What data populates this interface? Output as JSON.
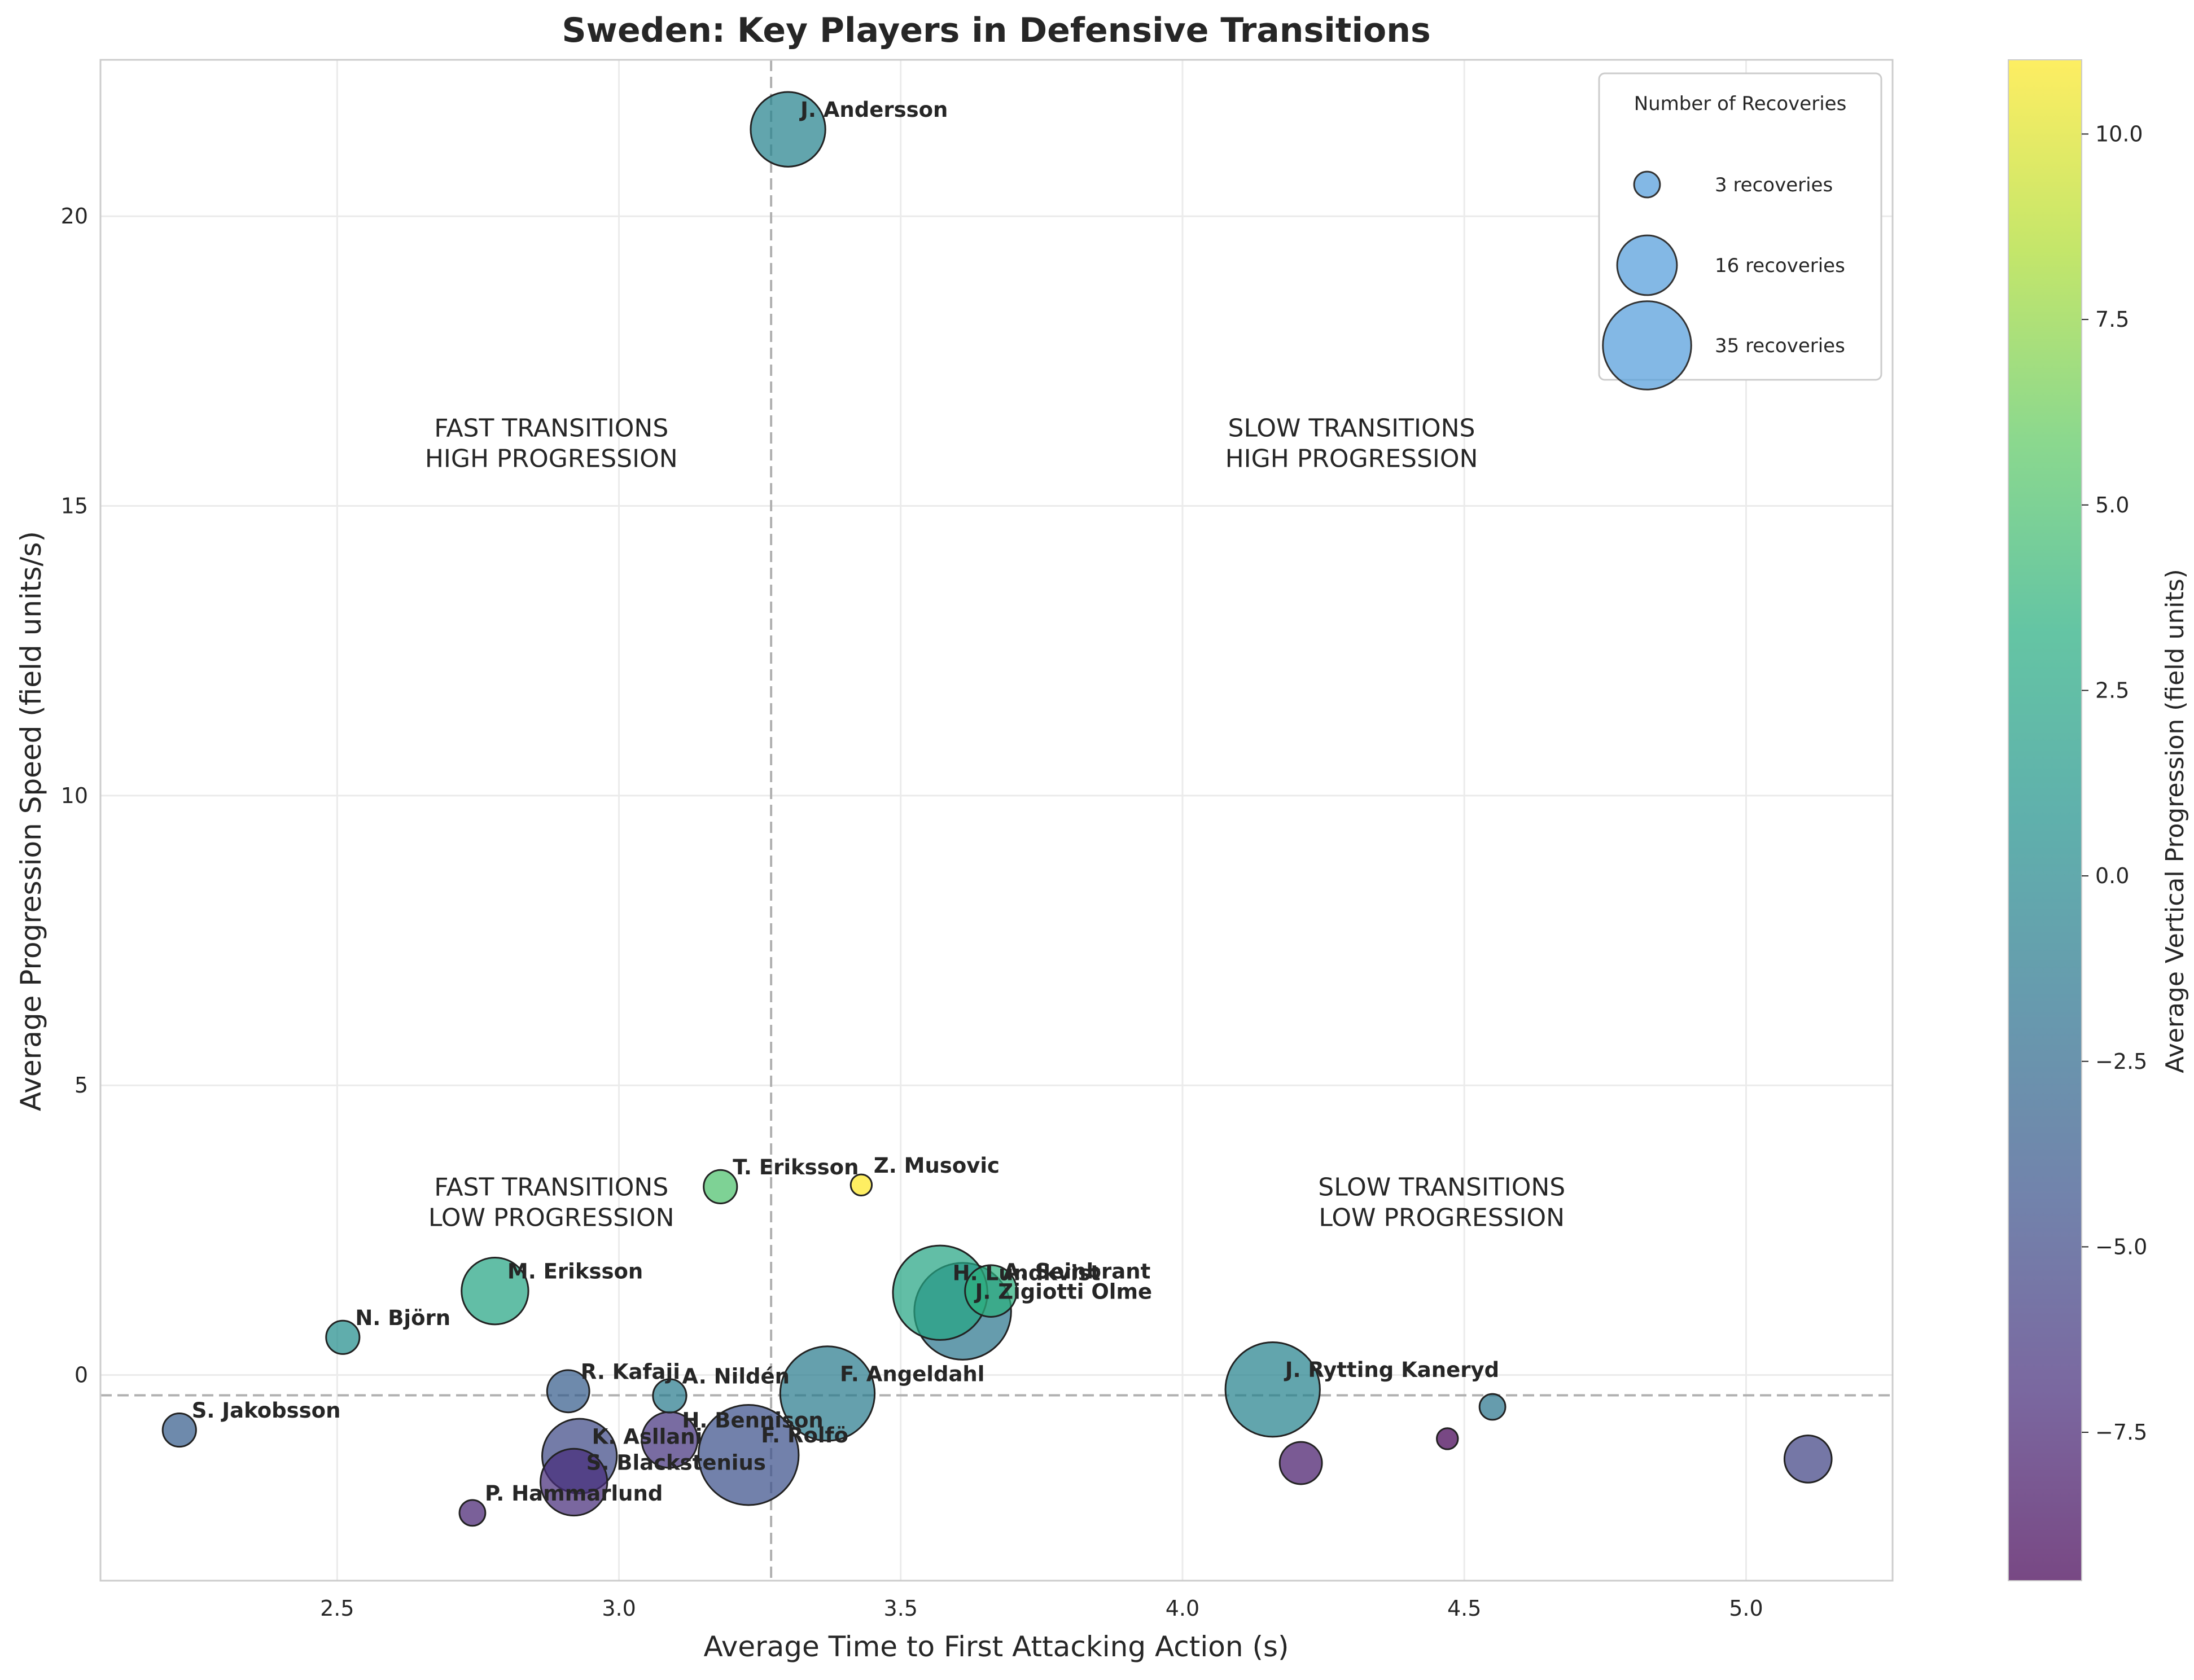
{
  "chart_data": {
    "type": "scatter",
    "title": "Sweden: Key Players in Defensive Transitions",
    "xlabel": "Average Time to First Attacking Action (s)",
    "ylabel": "Average Progression Speed (field units/s)",
    "xlim": [
      2.08,
      5.26
    ],
    "ylim": [
      -3.55,
      22.7
    ],
    "xticks": [
      2.5,
      3.0,
      3.5,
      4.0,
      4.5,
      5.0
    ],
    "xtick_labels": [
      "2.5",
      "3.0",
      "3.5",
      "4.0",
      "4.5",
      "5.0"
    ],
    "yticks": [
      0,
      5,
      10,
      15,
      20
    ],
    "ytick_labels": [
      "0",
      "5",
      "10",
      "15",
      "20"
    ],
    "grid": true,
    "reference_lines": {
      "x": 3.27,
      "y": -0.35
    },
    "quadrant_labels": [
      {
        "lines": [
          "FAST TRANSITIONS",
          "HIGH PROGRESSION"
        ],
        "x": 2.88,
        "y": 16.2
      },
      {
        "lines": [
          "SLOW TRANSITIONS",
          "HIGH PROGRESSION"
        ],
        "x": 4.3,
        "y": 16.2
      },
      {
        "lines": [
          "FAST TRANSITIONS",
          "LOW PROGRESSION"
        ],
        "x": 2.88,
        "y": 3.1
      },
      {
        "lines": [
          "SLOW TRANSITIONS",
          "LOW PROGRESSION"
        ],
        "x": 4.46,
        "y": 3.1
      }
    ],
    "colorbar": {
      "label": "Average Vertical Progression (field units)",
      "range": [
        -9.5,
        11.0
      ],
      "ticks": [
        -7.5,
        -5.0,
        -2.5,
        0.0,
        2.5,
        5.0,
        7.5,
        10.0
      ],
      "tick_labels": [
        "−7.5",
        "−5.0",
        "−2.5",
        "0.0",
        "2.5",
        "5.0",
        "7.5",
        "10.0"
      ],
      "colormap": "viridis"
    },
    "size_legend": {
      "title": "Number of Recoveries",
      "location": "upper right",
      "entries": [
        {
          "label": "3 recoveries",
          "recoveries": 3
        },
        {
          "label": "16 recoveries",
          "recoveries": 16
        },
        {
          "label": "35 recoveries",
          "recoveries": 35
        }
      ],
      "color": "#5aa0dc"
    },
    "points": [
      {
        "name": "J. Andersson",
        "x": 3.3,
        "y": 21.5,
        "recoveries": 25,
        "color_value": -0.5
      },
      {
        "name": "T. Eriksson",
        "x": 3.18,
        "y": 3.25,
        "recoveries": 5,
        "color_value": 5.0
      },
      {
        "name": "Z. Musovic",
        "x": 3.43,
        "y": 3.28,
        "recoveries": 2,
        "color_value": 11.0
      },
      {
        "name": "M. Eriksson",
        "x": 2.78,
        "y": 1.45,
        "recoveries": 20,
        "color_value": 2.5
      },
      {
        "name": "N. Björn",
        "x": 2.51,
        "y": 0.65,
        "recoveries": 5,
        "color_value": 0.5
      },
      {
        "name": "H. Lundkvist",
        "x": 3.57,
        "y": 1.42,
        "recoveries": 40,
        "color_value": 2.5
      },
      {
        "name": "J. Zigiotti Olme",
        "x": 3.61,
        "y": 1.1,
        "recoveries": 42,
        "color_value": -1.5
      },
      {
        "name": "A. Seinbrant",
        "x": 3.66,
        "y": 1.45,
        "recoveries": 12,
        "color_value": 3.5
      },
      {
        "name": "R. Kafaji",
        "x": 2.91,
        "y": -0.28,
        "recoveries": 8,
        "color_value": -3.5
      },
      {
        "name": "A. Nildén",
        "x": 3.09,
        "y": -0.36,
        "recoveries": 5,
        "color_value": -1.0
      },
      {
        "name": "F. Angeldahl",
        "x": 3.37,
        "y": -0.32,
        "recoveries": 40,
        "color_value": -1.0
      },
      {
        "name": "S. Jakobsson",
        "x": 2.22,
        "y": -0.95,
        "recoveries": 5,
        "color_value": -3.5
      },
      {
        "name": "K. Asllani",
        "x": 2.93,
        "y": -1.4,
        "recoveries": 25,
        "color_value": -5.0
      },
      {
        "name": "H. Bennison",
        "x": 3.09,
        "y": -1.12,
        "recoveries": 14,
        "color_value": -6.5
      },
      {
        "name": "F. Rolfö",
        "x": 3.23,
        "y": -1.38,
        "recoveries": 45,
        "color_value": -4.5
      },
      {
        "name": "S. Blackstenius",
        "x": 2.92,
        "y": -1.85,
        "recoveries": 20,
        "color_value": -7.0
      },
      {
        "name": "P. Hammarlund",
        "x": 2.74,
        "y": -2.38,
        "recoveries": 3,
        "color_value": -7.5
      },
      {
        "name": "J. Rytting Kaneryd",
        "x": 4.16,
        "y": -0.25,
        "recoveries": 40,
        "color_value": -0.5
      },
      {
        "name": "",
        "x": 4.55,
        "y": -0.55,
        "recoveries": 3,
        "color_value": -1.5
      },
      {
        "name": "",
        "x": 4.47,
        "y": -1.1,
        "recoveries": 2,
        "color_value": -9.5
      },
      {
        "name": "",
        "x": 4.21,
        "y": -1.52,
        "recoveries": 8,
        "color_value": -8.0
      },
      {
        "name": "",
        "x": 5.11,
        "y": -1.45,
        "recoveries": 10,
        "color_value": -5.5
      }
    ]
  }
}
